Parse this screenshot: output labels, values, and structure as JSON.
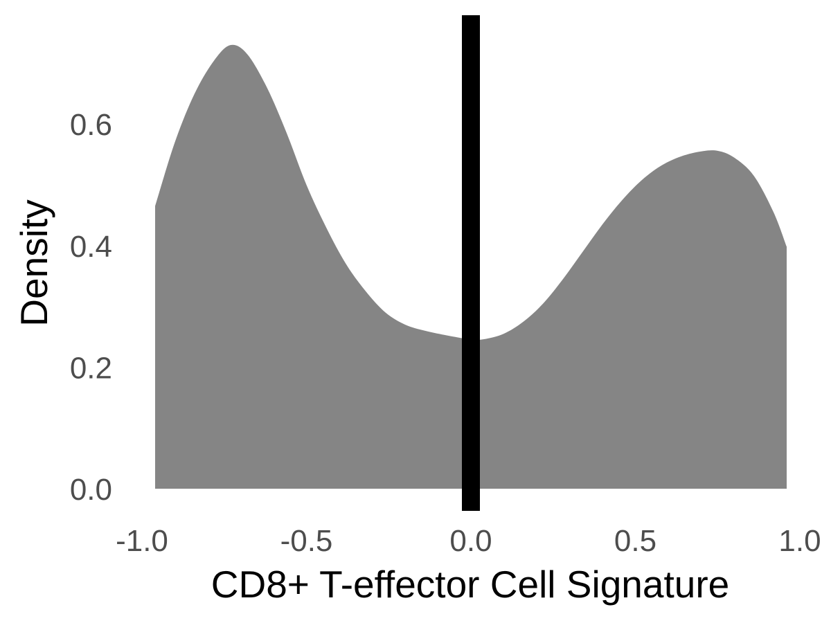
{
  "chart_data": {
    "type": "area",
    "title": "",
    "xlabel": "CD8+ T-effector Cell Signature",
    "ylabel": "Density",
    "xlim": [
      -1.0,
      1.0
    ],
    "ylim": [
      0.0,
      0.72
    ],
    "x_ticks": [
      "-1.0",
      "-0.5",
      "0.0",
      "0.5",
      "1.0"
    ],
    "y_ticks": [
      "0.0",
      "0.2",
      "0.4",
      "0.6"
    ],
    "grid": false,
    "legend": "none",
    "fill_color": "#858585",
    "vline": {
      "x": 0.0,
      "color": "#000000"
    },
    "series": [
      {
        "x": [
          -0.96,
          -0.9,
          -0.84,
          -0.78,
          -0.73,
          -0.68,
          -0.62,
          -0.56,
          -0.5,
          -0.44,
          -0.38,
          -0.32,
          -0.26,
          -0.2,
          -0.14,
          -0.08,
          -0.02,
          0.0,
          0.04,
          0.1,
          0.16,
          0.22,
          0.28,
          0.34,
          0.4,
          0.46,
          0.52,
          0.58,
          0.64,
          0.7,
          0.75,
          0.8,
          0.86,
          0.92,
          0.96
        ],
        "y": [
          0.465,
          0.57,
          0.65,
          0.705,
          0.73,
          0.715,
          0.66,
          0.585,
          0.5,
          0.43,
          0.37,
          0.325,
          0.29,
          0.27,
          0.26,
          0.253,
          0.247,
          0.245,
          0.246,
          0.255,
          0.275,
          0.305,
          0.345,
          0.39,
          0.435,
          0.475,
          0.508,
          0.532,
          0.547,
          0.555,
          0.556,
          0.545,
          0.515,
          0.455,
          0.398
        ]
      }
    ]
  }
}
